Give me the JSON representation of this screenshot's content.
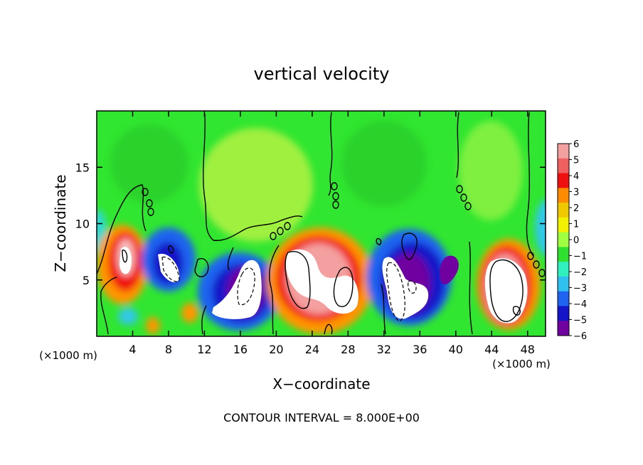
{
  "chart_data": {
    "type": "heatmap",
    "title": "vertical velocity",
    "xlabel": "X−coordinate",
    "ylabel": "Z−coordinate",
    "x_unit_left": "(×1000 m)",
    "x_unit_right": "(×1000 m)",
    "xlim": [
      0,
      50
    ],
    "ylim": [
      0,
      20
    ],
    "xticks": [
      4,
      8,
      12,
      16,
      20,
      24,
      28,
      32,
      36,
      40,
      44,
      48
    ],
    "yticks": [
      5,
      10,
      15
    ],
    "footer": "CONTOUR INTERVAL = 8.000E+00",
    "colorbar": {
      "levels": [
        6,
        5,
        4,
        3,
        2,
        1,
        0,
        -1,
        -2,
        -3,
        -4,
        -5,
        -6
      ],
      "labels": [
        "6",
        "5",
        "4",
        "3",
        "2",
        "1",
        "0",
        "−1",
        "−2",
        "−3",
        "−4",
        "−5",
        "−6"
      ],
      "colors": [
        "#f4a0a0",
        "#f06060",
        "#f01010",
        "#ff8c00",
        "#f0c800",
        "#f0f000",
        "#a0ff40",
        "#30e030",
        "#30f0c0",
        "#30c0f0",
        "#1e64f0",
        "#1414c8",
        "#7000a0"
      ]
    },
    "features": [
      {
        "sign": "up",
        "x": 3,
        "z": 7,
        "w": 13
      },
      {
        "sign": "down",
        "x": 7.5,
        "z": 6,
        "w": -9
      },
      {
        "sign": "down",
        "x": 13.5,
        "z": 3,
        "w": -6
      },
      {
        "sign": "down",
        "x": 17.5,
        "z": 4.5,
        "w": -11
      },
      {
        "sign": "up",
        "x": 23,
        "z": 5,
        "w": 16
      },
      {
        "sign": "up",
        "x": 27,
        "z": 3.5,
        "w": 12
      },
      {
        "sign": "down",
        "x": 33,
        "z": 3.5,
        "w": -13
      },
      {
        "sign": "down",
        "x": 39,
        "z": 4.5,
        "w": -6
      },
      {
        "sign": "up",
        "x": 45.5,
        "z": 4.5,
        "w": 16
      }
    ],
    "grid": false
  }
}
